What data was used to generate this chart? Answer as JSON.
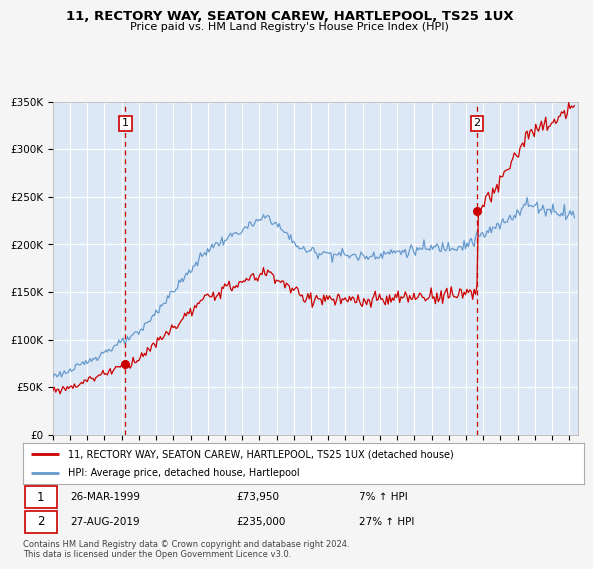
{
  "title": "11, RECTORY WAY, SEATON CAREW, HARTLEPOOL, TS25 1UX",
  "subtitle": "Price paid vs. HM Land Registry's House Price Index (HPI)",
  "legend_label_red": "11, RECTORY WAY, SEATON CAREW, HARTLEPOOL, TS25 1UX (detached house)",
  "legend_label_blue": "HPI: Average price, detached house, Hartlepool",
  "annotation1_date": "26-MAR-1999",
  "annotation1_price": "£73,950",
  "annotation1_hpi": "7% ↑ HPI",
  "annotation2_date": "27-AUG-2019",
  "annotation2_price": "£235,000",
  "annotation2_hpi": "27% ↑ HPI",
  "footer": "Contains HM Land Registry data © Crown copyright and database right 2024.\nThis data is licensed under the Open Government Licence v3.0.",
  "sale1_year": 1999.22,
  "sale1_price": 73950,
  "sale2_year": 2019.65,
  "sale2_price": 235000,
  "xmin": 1995.0,
  "xmax": 2025.5,
  "ymin": 0,
  "ymax": 350000,
  "yticks": [
    0,
    50000,
    100000,
    150000,
    200000,
    250000,
    300000,
    350000
  ],
  "ytick_labels": [
    "£0",
    "£50K",
    "£100K",
    "£150K",
    "£200K",
    "£250K",
    "£300K",
    "£350K"
  ],
  "red_color": "#cc0000",
  "blue_color": "#6699cc",
  "plot_bg_color": "#dce8f5",
  "fig_bg_color": "#f5f5f5",
  "grid_color": "#ffffff"
}
